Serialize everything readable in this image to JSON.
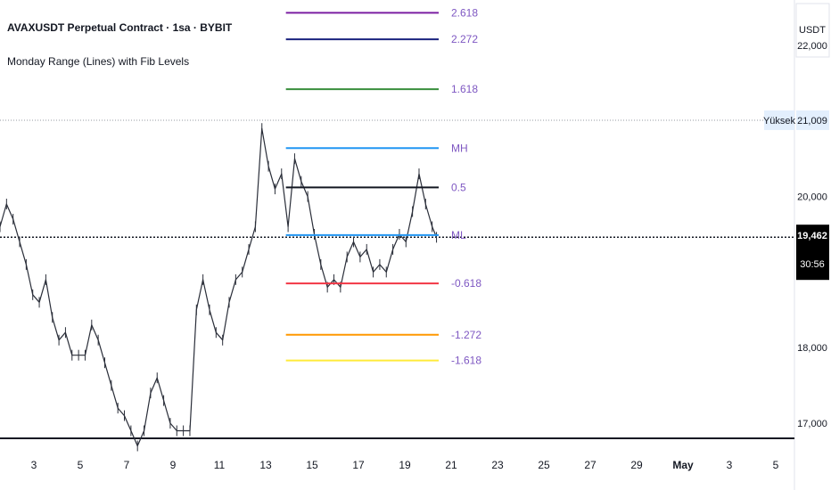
{
  "header": {
    "symbol_line": "AVAXUSDT Perpetual Contract · 1sa · BYBIT",
    "indicator_line": "Monday Range (Lines) with Fib Levels"
  },
  "price_axis": {
    "currency": "USDT",
    "ticks": [
      {
        "value": 22000,
        "label": "22,000"
      },
      {
        "value": 20000,
        "label": "20,000"
      },
      {
        "value": 18000,
        "label": "18,000"
      },
      {
        "value": 17000,
        "label": "17,000"
      }
    ],
    "high_label": "Yüksek",
    "high_value_label": "21,009",
    "last_price_label": "19,462",
    "countdown_label": "30:56"
  },
  "time_axis": {
    "ticks": [
      "3",
      "5",
      "7",
      "9",
      "11",
      "13",
      "15",
      "17",
      "19",
      "21",
      "23",
      "25",
      "27",
      "29",
      "May",
      "3",
      "5"
    ]
  },
  "chart_data": {
    "type": "line",
    "title": "",
    "xlabel": "",
    "ylabel": "",
    "ylim": [
      16.8,
      22.6
    ],
    "x_units": "day",
    "xlim": [
      1.0,
      37.4
    ],
    "high_price": 21.009,
    "last_price": 19.462,
    "fib_levels": [
      {
        "label": "2.618",
        "price": 22.43,
        "color": "#7b1fa2"
      },
      {
        "label": "2.272",
        "price": 22.08,
        "color": "#1a237e"
      },
      {
        "label": "1.618",
        "price": 21.42,
        "color": "#388e3c"
      },
      {
        "label": "MH",
        "price": 20.64,
        "color": "#2196f3"
      },
      {
        "label": "0.5",
        "price": 20.12,
        "color": "#131722"
      },
      {
        "label": "ML",
        "price": 19.49,
        "color": "#2196f3"
      },
      {
        "label": "-0.618",
        "price": 18.85,
        "color": "#f23645"
      },
      {
        "label": "-1.272",
        "price": 18.17,
        "color": "#ff9800"
      },
      {
        "label": "-1.618",
        "price": 17.83,
        "color": "#ffeb3b"
      }
    ],
    "fib_x_start": 14.1,
    "fib_x_end": 21.1,
    "fib_label_color": "#7e57c2",
    "series": [
      {
        "x": [
          1.0,
          1.3,
          1.6,
          1.9,
          2.2,
          2.5,
          2.8,
          3.1,
          3.4,
          3.7,
          4.0,
          4.3,
          4.6,
          4.9,
          5.2,
          5.5,
          5.8,
          6.1,
          6.4,
          6.7,
          7.0,
          7.3,
          7.6,
          7.9,
          8.2,
          8.5,
          8.8,
          9.1,
          9.4,
          9.7,
          10.0,
          10.3,
          10.6,
          10.9,
          11.2,
          11.5,
          11.8,
          12.1,
          12.4,
          12.7,
          13.0,
          13.3,
          13.6,
          13.9,
          14.2,
          14.5,
          14.8,
          15.1,
          15.4,
          15.7,
          16.0,
          16.3,
          16.6,
          16.9,
          17.2,
          17.5,
          17.8,
          18.1,
          18.4,
          18.7,
          19.0,
          19.3,
          19.6,
          19.9,
          20.2,
          20.5,
          20.8,
          21.0
        ],
        "y": [
          19.6,
          19.9,
          19.7,
          19.4,
          19.1,
          18.7,
          18.6,
          18.9,
          18.4,
          18.1,
          18.2,
          17.9,
          17.9,
          17.9,
          18.3,
          18.1,
          17.8,
          17.5,
          17.2,
          17.1,
          16.9,
          16.7,
          16.9,
          17.4,
          17.6,
          17.3,
          17.0,
          16.9,
          16.9,
          16.9,
          18.5,
          18.9,
          18.5,
          18.2,
          18.1,
          18.6,
          18.9,
          19.0,
          19.3,
          19.6,
          20.9,
          20.4,
          20.1,
          20.3,
          19.6,
          20.5,
          20.2,
          20.0,
          19.5,
          19.1,
          18.8,
          18.9,
          18.8,
          19.2,
          19.4,
          19.2,
          19.3,
          19.0,
          19.1,
          19.0,
          19.3,
          19.5,
          19.4,
          19.8,
          20.3,
          19.9,
          19.6,
          19.46
        ]
      }
    ]
  }
}
